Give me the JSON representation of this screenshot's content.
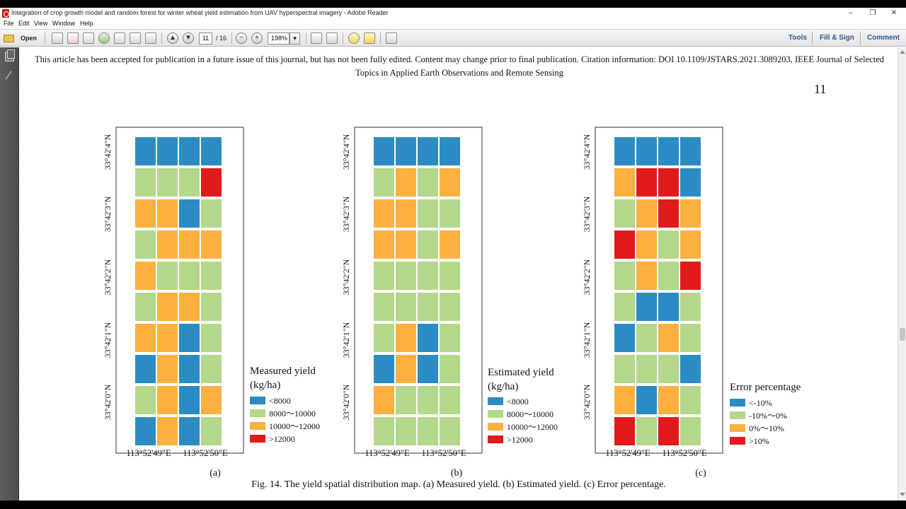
{
  "window": {
    "title": "Integration of crop growth model and random forest for winter wheat yield estimation from UAV hyperspectral imagery - Adobe Reader",
    "minimize_glyph": "–",
    "restore_glyph": "❐",
    "close_glyph": "✕"
  },
  "menu": {
    "items": [
      "File",
      "Edit",
      "View",
      "Window",
      "Help"
    ]
  },
  "toolbar": {
    "open_label": "Open",
    "page_current": "11",
    "page_total": "/ 16",
    "zoom": "198%",
    "tools_label": "Tools",
    "fill_sign_label": "Fill & Sign",
    "comment_label": "Comment"
  },
  "document": {
    "notice": "This article has been accepted for publication in a future issue of this journal, but has not been fully edited. Content may change prior to final publication. Citation information: DOI 10.1109/JSTARS.2021.3089203, IEEE Journal of Selected Topics in Applied Earth Observations and Remote Sensing",
    "page_number": "11",
    "caption": "Fig. 14. The yield spatial distribution map. (a) Measured yield. (b) Estimated yield. (c) Error percentage."
  },
  "figure": {
    "y_ticks": [
      "33°42'4\"N",
      "33°42'3\"N",
      "33°42'2\"N",
      "33°42'1\"N",
      "33°42'0\"N"
    ],
    "x_ticks": [
      "113°52'49\"E",
      "113°52'50\"E"
    ],
    "colors": {
      "blue": "#2b8cc4",
      "green": "#b3d88c",
      "orange": "#fbb040",
      "red": "#e31a1c"
    },
    "panels": [
      {
        "label": "(a)",
        "legend_title": [
          "Measured yield",
          "(kg/ha)"
        ],
        "legend_items": [
          "<8000",
          "8000～10000",
          "10000～12000",
          ">12000"
        ],
        "grid": [
          [
            "blue",
            "blue",
            "blue",
            "blue"
          ],
          [
            "green",
            "green",
            "green",
            "red"
          ],
          [
            "orange",
            "orange",
            "blue",
            "green"
          ],
          [
            "green",
            "orange",
            "orange",
            "orange"
          ],
          [
            "orange",
            "green",
            "green",
            "green"
          ],
          [
            "green",
            "orange",
            "orange",
            "green"
          ],
          [
            "orange",
            "orange",
            "blue",
            "green"
          ],
          [
            "blue",
            "orange",
            "blue",
            "green"
          ],
          [
            "green",
            "orange",
            "blue",
            "orange"
          ],
          [
            "blue",
            "orange",
            "blue",
            "green"
          ]
        ]
      },
      {
        "label": "(b)",
        "legend_title": [
          "Estimated yield",
          "(kg/ha)"
        ],
        "legend_items": [
          "<8000",
          "8000～10000",
          "10000～12000",
          ">12000"
        ],
        "grid": [
          [
            "blue",
            "blue",
            "blue",
            "blue"
          ],
          [
            "green",
            "orange",
            "green",
            "orange"
          ],
          [
            "orange",
            "orange",
            "green",
            "green"
          ],
          [
            "orange",
            "orange",
            "green",
            "orange"
          ],
          [
            "green",
            "green",
            "green",
            "green"
          ],
          [
            "green",
            "green",
            "green",
            "green"
          ],
          [
            "green",
            "orange",
            "blue",
            "green"
          ],
          [
            "blue",
            "orange",
            "blue",
            "green"
          ],
          [
            "orange",
            "green",
            "green",
            "green"
          ],
          [
            "green",
            "green",
            "green",
            "green"
          ]
        ]
      },
      {
        "label": "(c)",
        "legend_title": [
          "Error percentage"
        ],
        "legend_items": [
          "<-10%",
          "-10%～0%",
          "0%～10%",
          ">10%"
        ],
        "grid": [
          [
            "blue",
            "blue",
            "blue",
            "blue"
          ],
          [
            "orange",
            "red",
            "red",
            "blue"
          ],
          [
            "green",
            "orange",
            "red",
            "orange"
          ],
          [
            "red",
            "orange",
            "green",
            "orange"
          ],
          [
            "green",
            "orange",
            "green",
            "red"
          ],
          [
            "green",
            "blue",
            "blue",
            "green"
          ],
          [
            "blue",
            "green",
            "orange",
            "green"
          ],
          [
            "green",
            "green",
            "green",
            "blue"
          ],
          [
            "orange",
            "blue",
            "orange",
            "green"
          ],
          [
            "red",
            "green",
            "red",
            "green"
          ]
        ]
      }
    ]
  }
}
